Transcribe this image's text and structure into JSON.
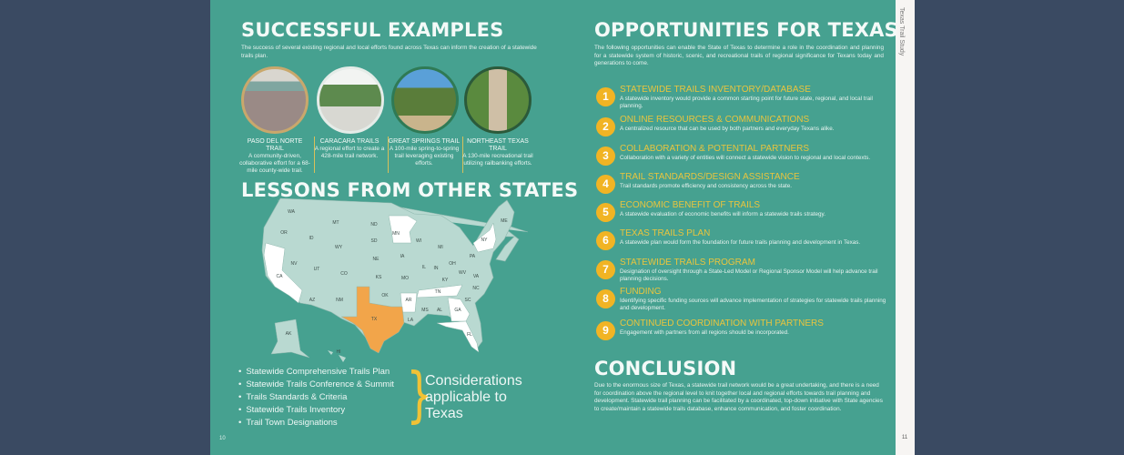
{
  "left_page": {
    "title": "SUCCESSFUL EXAMPLES",
    "intro": "The success of several existing regional and local efforts found across Texas can inform the creation of a statewide trails plan.",
    "examples": [
      {
        "name": "PASO DEL NORTE TRAIL",
        "desc": "A community-driven, collaborative effort for a 68-mile county-wide trail."
      },
      {
        "name": "CARACARA TRAILS",
        "desc": "A regional effort to create a 428-mile trail network."
      },
      {
        "name": "GREAT SPRINGS TRAIL",
        "desc": "A 100-mile spring-to-spring trail leveraging existing efforts."
      },
      {
        "name": "NORTHEAST TEXAS TRAIL",
        "desc": "A 130-mile recreational trail utilizing railbanking efforts."
      }
    ],
    "lessons_title": "LESSONS FROM OTHER STATES",
    "map": {
      "highlight_color": "#f2a54a",
      "other_color": "#ffffff",
      "base_color": "#b9d9d1",
      "highlighted_states": [
        "TX"
      ],
      "white_states": [
        "CA",
        "MN",
        "AR",
        "TN",
        "GA",
        "FL",
        "NY"
      ],
      "labels": [
        "WA",
        "OR",
        "CA",
        "ID",
        "NV",
        "MT",
        "WY",
        "UT",
        "AZ",
        "CO",
        "NM",
        "ND",
        "SD",
        "NE",
        "KS",
        "OK",
        "TX",
        "MN",
        "IA",
        "MO",
        "AR",
        "LA",
        "WI",
        "IL",
        "MI",
        "IN",
        "OH",
        "KY",
        "TN",
        "MS",
        "AL",
        "GA",
        "FL",
        "SC",
        "NC",
        "VA",
        "WV",
        "PA",
        "NY",
        "ME",
        "AK",
        "HI"
      ]
    },
    "considerations": [
      "Statewide Comprehensive Trails Plan",
      "Statewide Trails Conference & Summit",
      "Trails Standards & Criteria",
      "Statewide Trails Inventory",
      "Trail Town Designations"
    ],
    "considerations_label": "Considerations applicable to Texas",
    "page_number": "10"
  },
  "right_page": {
    "title": "OPPORTUNITIES FOR TEXAS",
    "intro": "The following opportunities can enable the State of Texas to determine a role in the coordination and planning for a statewide system of historic, scenic, and recreational trails of regional significance for Texans today and generations to come.",
    "items": [
      {
        "n": "1",
        "title": "STATEWIDE TRAILS INVENTORY/DATABASE",
        "desc": "A statewide inventory would provide a common starting point for future state, regional, and local trail planning."
      },
      {
        "n": "2",
        "title": "ONLINE RESOURCES & COMMUNICATIONS",
        "desc": "A centralized resource that can be used by both partners and everyday Texans alike."
      },
      {
        "n": "3",
        "title": "COLLABORATION & POTENTIAL PARTNERS",
        "desc": "Collaboration with a variety of entities will connect a statewide vision to regional and local contexts."
      },
      {
        "n": "4",
        "title": "TRAIL STANDARDS/DESIGN ASSISTANCE",
        "desc": "Trail standards promote efficiency and consistency across the state."
      },
      {
        "n": "5",
        "title": "ECONOMIC BENEFIT OF TRAILS",
        "desc": "A statewide evaluation of economic benefits will inform a statewide trails strategy."
      },
      {
        "n": "6",
        "title": "TEXAS TRAILS PLAN",
        "desc": "A statewide plan would form the foundation for future trails planning and development in Texas."
      },
      {
        "n": "7",
        "title": "STATEWIDE TRAILS PROGRAM",
        "desc": "Designation of oversight through a State-Led Model or Regional Sponsor Model will help advance trail planning decisions."
      },
      {
        "n": "8",
        "title": "FUNDING",
        "desc": "Identifying specific funding sources will advance implementation of strategies for statewide trails planning and development."
      },
      {
        "n": "9",
        "title": "CONTINUED COORDINATION WITH PARTNERS",
        "desc": "Engagement with partners from all regions should be incorporated."
      }
    ],
    "conclusion_title": "CONCLUSION",
    "conclusion": "Due to the enormous size of Texas, a statewide trail network would be a great undertaking, and there is a need for coordination above the regional level to knit together local and regional efforts towards trail planning and development. Statewide trail planning can be facilitated by a coordinated, top-down initiative with State agencies to create/maintain a statewide trails database, enhance communication, and foster coordination.",
    "page_number": "11"
  },
  "side_label": "Texas Trail Study",
  "colors": {
    "page": "#46a190",
    "background": "#3a4a62",
    "accent": "#f1b424"
  }
}
